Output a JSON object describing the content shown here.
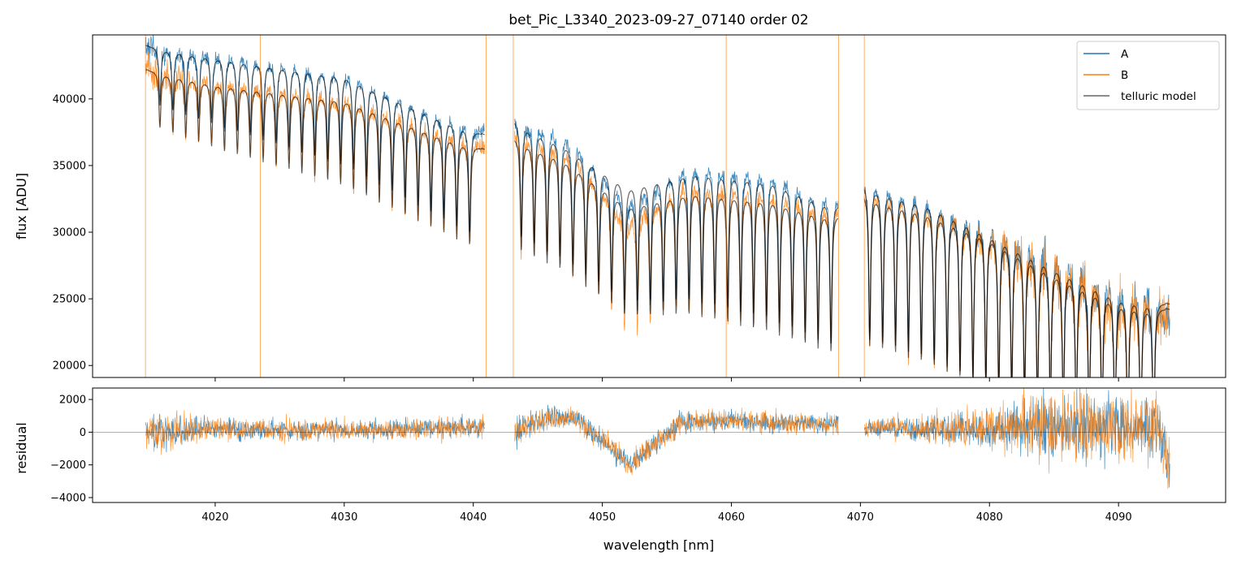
{
  "chart_data": [
    {
      "type": "line",
      "panel": "main",
      "title": "bet_Pic_L3340_2023-09-27_07140  order 02",
      "xlabel": "",
      "ylabel": "flux [ADU]",
      "xlim": [
        4010.5,
        4098.3
      ],
      "ylim": [
        19100,
        44800
      ],
      "yticks": [
        20000,
        25000,
        30000,
        35000,
        40000
      ],
      "ytick_labels": [
        "20000",
        "25000",
        "30000",
        "35000",
        "40000"
      ],
      "legend_position": "top-right",
      "legend": [
        "A",
        "B",
        "telluric model"
      ],
      "segments": [
        [
          4014.6,
          4040.9
        ],
        [
          4043.2,
          4068.3
        ],
        [
          4070.3,
          4094.0
        ]
      ],
      "continuum": {
        "wavelength": [
          4014.6,
          4020,
          4030,
          4040.9,
          4043.2,
          4047,
          4052,
          4057,
          4063,
          4068.3,
          4070.3,
          4075,
          4080,
          4085,
          4090,
          4094.0
        ],
        "model_A": [
          44000,
          43200,
          41900,
          37300,
          38400,
          36800,
          33600,
          34800,
          34200,
          32100,
          33700,
          32600,
          30200,
          27700,
          25400,
          24600
        ],
        "model_B": [
          42200,
          41200,
          40100,
          36200,
          37100,
          35700,
          32200,
          33300,
          32700,
          31300,
          33000,
          31900,
          29900,
          27200,
          24900,
          24200
        ]
      },
      "series": [
        {
          "name": "A",
          "color": "#1f77b4",
          "noise": 500
        },
        {
          "name": "B",
          "color": "#ff7f0e",
          "noise": 700
        },
        {
          "name": "telluric model",
          "color": "#000000",
          "opacity": 0.6
        }
      ],
      "telluric_lines": {
        "start": 4015.72,
        "spacing": 1.0,
        "end": 4093.5,
        "gaps": [
          [
            4040.9,
            4043.2
          ],
          [
            4068.3,
            4070.3
          ]
        ],
        "depth_start": 0.1,
        "depth_end": 0.45
      }
    },
    {
      "type": "line",
      "panel": "residual",
      "xlabel": "wavelength [nm]",
      "ylabel": "residual",
      "xlim": [
        4010.5,
        4098.3
      ],
      "ylim": [
        -4300,
        2700
      ],
      "xticks": [
        4020,
        4030,
        4040,
        4050,
        4060,
        4070,
        4080,
        4090
      ],
      "xtick_labels": [
        "4020",
        "4030",
        "4040",
        "4050",
        "4060",
        "4070",
        "4080",
        "4090"
      ],
      "yticks": [
        -4000,
        -2000,
        0,
        2000
      ],
      "ytick_labels": [
        "−4000",
        "−2000",
        "0",
        "2000"
      ],
      "zero_line": 0,
      "trend": {
        "wavelength": [
          4014.6,
          4020,
          4030,
          4040.9,
          4043.2,
          4046,
          4048,
          4050,
          4052,
          4054,
          4056,
          4060,
          4068.3,
          4070.3,
          4075,
          4080,
          4085,
          4090,
          4093,
          4094.0
        ],
        "value": [
          0,
          200,
          100,
          300,
          200,
          900,
          900,
          -500,
          -2000,
          -800,
          600,
          700,
          500,
          300,
          200,
          200,
          400,
          400,
          300,
          -2000
        ]
      },
      "noise_scale": {
        "wavelength": [
          4014.6,
          4020,
          4030,
          4040.9,
          4043.2,
          4046,
          4060,
          4068.3,
          4070.3,
          4080,
          4085,
          4090,
          4094.0
        ],
        "sigma": [
          900,
          500,
          450,
          450,
          800,
          500,
          500,
          450,
          350,
          900,
          1600,
          1500,
          1300
        ]
      }
    }
  ]
}
